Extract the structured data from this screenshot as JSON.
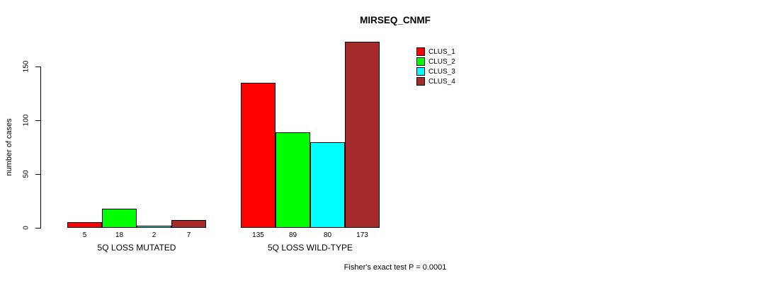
{
  "title": "MIRSEQ_CNMF",
  "footer": "Fisher's exact test P = 0.0001",
  "chart_data": {
    "type": "bar",
    "title": "MIRSEQ_CNMF",
    "ylabel": "number of cases",
    "annotation": "Fisher's exact test P = 0.0001",
    "series": [
      "CLUS_1",
      "CLUS_2",
      "CLUS_3",
      "CLUS_4"
    ],
    "colors": [
      "#FF0000",
      "#00FF00",
      "#00FFFF",
      "#A52A2A"
    ],
    "groups": [
      {
        "label": "5Q LOSS MUTATED",
        "values": [
          5,
          18,
          2,
          7
        ]
      },
      {
        "label": "5Q LOSS WILD-TYPE",
        "values": [
          135,
          89,
          80,
          173
        ]
      }
    ],
    "yticks": [
      0,
      50,
      100,
      150
    ],
    "ylim": [
      0,
      173
    ],
    "grid": false,
    "legend_position": "top-right"
  }
}
